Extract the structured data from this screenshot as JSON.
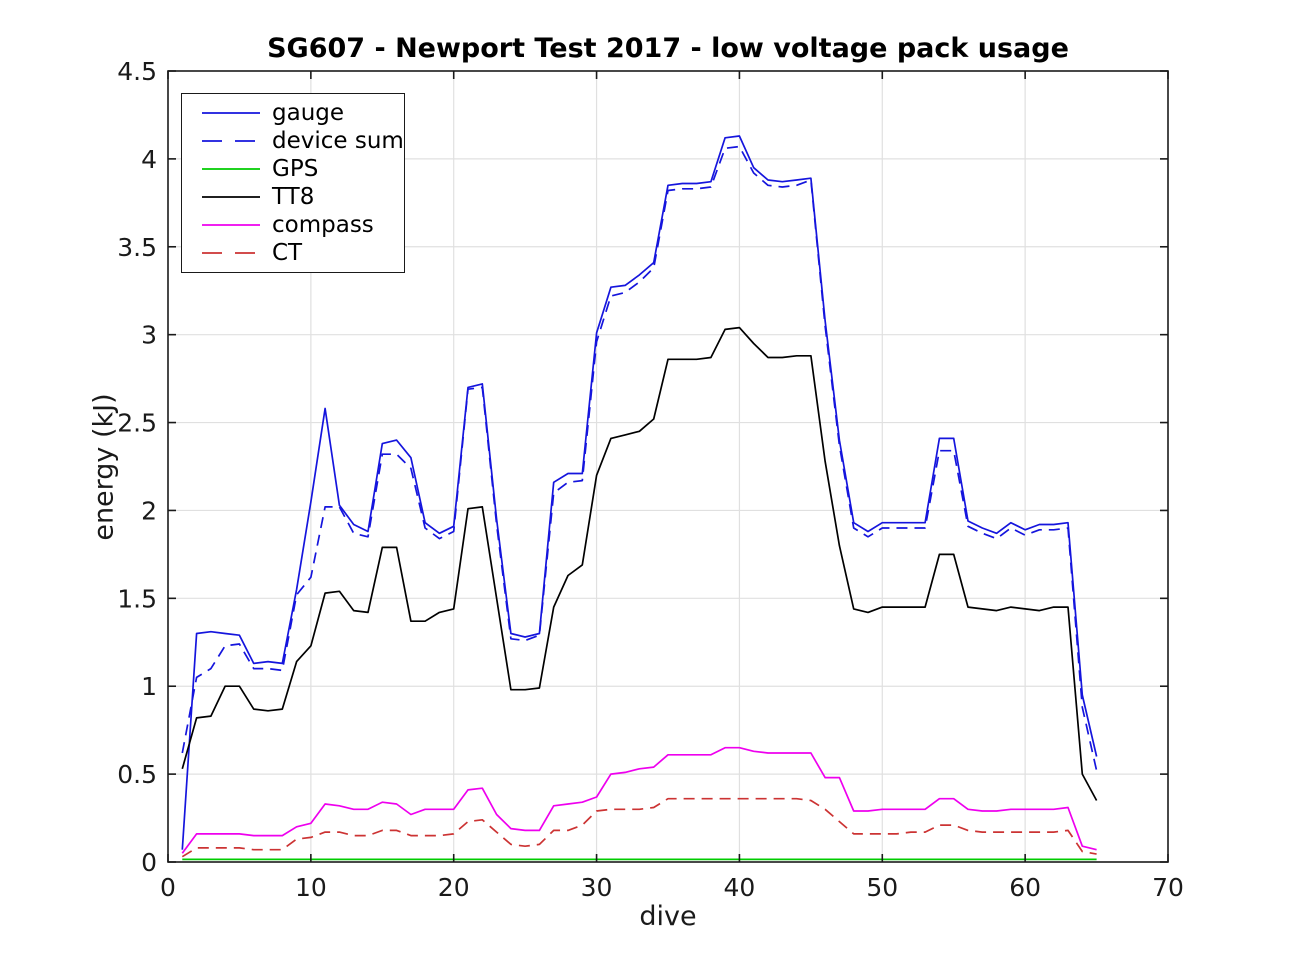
{
  "chart_data": {
    "type": "line",
    "title": "SG607 - Newport Test 2017 - low voltage pack usage",
    "xlabel": "dive",
    "ylabel": "energy (kJ)",
    "xlim": [
      0,
      70
    ],
    "ylim": [
      0,
      4.5
    ],
    "xticks": [
      0,
      10,
      20,
      30,
      40,
      50,
      60,
      70
    ],
    "yticks": [
      0,
      0.5,
      1,
      1.5,
      2,
      2.5,
      3,
      3.5,
      4,
      4.5
    ],
    "ytick_labels": [
      "0",
      "0.5",
      "1",
      "1.5",
      "2",
      "2.5",
      "3",
      "3.5",
      "4",
      "4.5"
    ],
    "grid": true,
    "legend_position": "top-left",
    "x": [
      1,
      2,
      3,
      4,
      5,
      6,
      7,
      8,
      9,
      10,
      11,
      12,
      13,
      14,
      15,
      16,
      17,
      18,
      19,
      20,
      21,
      22,
      23,
      24,
      25,
      26,
      27,
      28,
      29,
      30,
      31,
      32,
      33,
      34,
      35,
      36,
      37,
      38,
      39,
      40,
      41,
      42,
      43,
      44,
      45,
      46,
      47,
      48,
      49,
      50,
      51,
      52,
      53,
      54,
      55,
      56,
      57,
      58,
      59,
      60,
      61,
      62,
      63,
      64,
      65
    ],
    "series": [
      {
        "name": "gauge",
        "color": "#1515dd",
        "style": "solid",
        "values": [
          0.07,
          1.3,
          1.31,
          1.3,
          1.29,
          1.13,
          1.14,
          1.13,
          1.55,
          2.05,
          2.58,
          2.03,
          1.92,
          1.88,
          2.38,
          2.4,
          2.3,
          1.93,
          1.87,
          1.91,
          2.7,
          2.72,
          1.95,
          1.3,
          1.28,
          1.3,
          2.16,
          2.21,
          2.21,
          3.01,
          3.27,
          3.28,
          3.34,
          3.41,
          3.85,
          3.86,
          3.86,
          3.87,
          4.12,
          4.13,
          3.95,
          3.88,
          3.87,
          3.88,
          3.89,
          3.08,
          2.4,
          1.93,
          1.88,
          1.93,
          1.93,
          1.93,
          1.93,
          2.41,
          2.41,
          1.94,
          1.9,
          1.87,
          1.93,
          1.89,
          1.92,
          1.92,
          1.93,
          0.95,
          0.6
        ]
      },
      {
        "name": "device sum",
        "color": "#1515dd",
        "style": "dashed",
        "values": [
          0.62,
          1.05,
          1.1,
          1.23,
          1.24,
          1.1,
          1.1,
          1.09,
          1.52,
          1.62,
          2.02,
          2.02,
          1.87,
          1.85,
          2.32,
          2.32,
          2.24,
          1.9,
          1.84,
          1.88,
          2.69,
          2.7,
          1.92,
          1.27,
          1.26,
          1.29,
          2.1,
          2.16,
          2.17,
          2.96,
          3.22,
          3.24,
          3.3,
          3.38,
          3.82,
          3.83,
          3.83,
          3.84,
          4.06,
          4.07,
          3.92,
          3.85,
          3.84,
          3.85,
          3.88,
          3.05,
          2.37,
          1.9,
          1.85,
          1.9,
          1.9,
          1.9,
          1.9,
          2.34,
          2.34,
          1.91,
          1.87,
          1.84,
          1.9,
          1.86,
          1.89,
          1.89,
          1.9,
          0.88,
          0.52
        ]
      },
      {
        "name": "GPS",
        "color": "#00cc00",
        "style": "solid",
        "values": [
          0.015,
          0.015,
          0.015,
          0.015,
          0.015,
          0.015,
          0.015,
          0.015,
          0.015,
          0.015,
          0.015,
          0.015,
          0.015,
          0.015,
          0.015,
          0.015,
          0.015,
          0.015,
          0.015,
          0.015,
          0.015,
          0.015,
          0.015,
          0.015,
          0.015,
          0.015,
          0.015,
          0.015,
          0.015,
          0.015,
          0.015,
          0.015,
          0.015,
          0.015,
          0.015,
          0.015,
          0.015,
          0.015,
          0.015,
          0.015,
          0.015,
          0.015,
          0.015,
          0.015,
          0.015,
          0.015,
          0.015,
          0.015,
          0.015,
          0.015,
          0.015,
          0.015,
          0.015,
          0.015,
          0.015,
          0.015,
          0.015,
          0.015,
          0.015,
          0.015,
          0.015,
          0.015,
          0.015,
          0.015,
          0.015
        ]
      },
      {
        "name": "TT8",
        "color": "#000000",
        "style": "solid",
        "values": [
          0.53,
          0.82,
          0.83,
          1.0,
          1.0,
          0.87,
          0.86,
          0.87,
          1.14,
          1.23,
          1.53,
          1.54,
          1.43,
          1.42,
          1.79,
          1.79,
          1.37,
          1.37,
          1.42,
          1.44,
          2.01,
          2.02,
          1.5,
          0.98,
          0.98,
          0.99,
          1.45,
          1.63,
          1.69,
          2.2,
          2.41,
          2.43,
          2.45,
          2.52,
          2.86,
          2.86,
          2.86,
          2.87,
          3.03,
          3.04,
          2.95,
          2.87,
          2.87,
          2.88,
          2.88,
          2.28,
          1.8,
          1.44,
          1.42,
          1.45,
          1.45,
          1.45,
          1.45,
          1.75,
          1.75,
          1.45,
          1.44,
          1.43,
          1.45,
          1.44,
          1.43,
          1.45,
          1.45,
          0.5,
          0.35
        ]
      },
      {
        "name": "compass",
        "color": "#ee00ee",
        "style": "solid",
        "values": [
          0.05,
          0.16,
          0.16,
          0.16,
          0.16,
          0.15,
          0.15,
          0.15,
          0.2,
          0.22,
          0.33,
          0.32,
          0.3,
          0.3,
          0.34,
          0.33,
          0.27,
          0.3,
          0.3,
          0.3,
          0.41,
          0.42,
          0.27,
          0.19,
          0.18,
          0.18,
          0.32,
          0.33,
          0.34,
          0.37,
          0.5,
          0.51,
          0.53,
          0.54,
          0.61,
          0.61,
          0.61,
          0.61,
          0.65,
          0.65,
          0.63,
          0.62,
          0.62,
          0.62,
          0.62,
          0.48,
          0.48,
          0.29,
          0.29,
          0.3,
          0.3,
          0.3,
          0.3,
          0.36,
          0.36,
          0.3,
          0.29,
          0.29,
          0.3,
          0.3,
          0.3,
          0.3,
          0.31,
          0.09,
          0.07
        ]
      },
      {
        "name": "CT",
        "color": "#cc3333",
        "style": "dashed",
        "values": [
          0.03,
          0.08,
          0.08,
          0.08,
          0.08,
          0.07,
          0.07,
          0.07,
          0.13,
          0.14,
          0.17,
          0.17,
          0.15,
          0.15,
          0.18,
          0.18,
          0.15,
          0.15,
          0.15,
          0.16,
          0.23,
          0.24,
          0.17,
          0.1,
          0.09,
          0.1,
          0.18,
          0.18,
          0.21,
          0.29,
          0.3,
          0.3,
          0.3,
          0.31,
          0.36,
          0.36,
          0.36,
          0.36,
          0.36,
          0.36,
          0.36,
          0.36,
          0.36,
          0.36,
          0.35,
          0.3,
          0.23,
          0.16,
          0.16,
          0.16,
          0.16,
          0.17,
          0.17,
          0.21,
          0.21,
          0.18,
          0.17,
          0.17,
          0.17,
          0.17,
          0.17,
          0.17,
          0.18,
          0.06,
          0.045
        ]
      }
    ]
  },
  "colors": {
    "background": "#ffffff",
    "grid": "#e0e0e0",
    "axis": "#1a1a1a",
    "text": "#1a1a1a"
  }
}
